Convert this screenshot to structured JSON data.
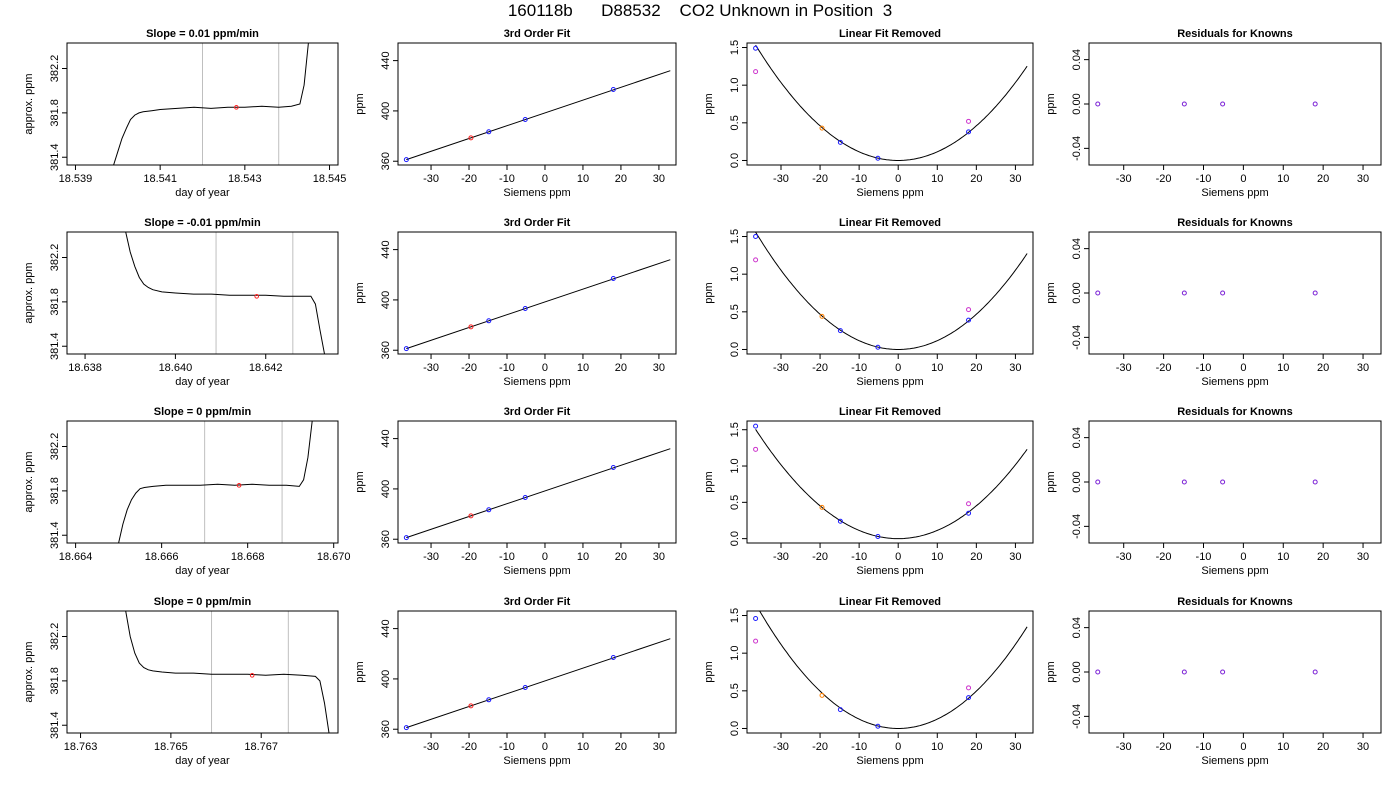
{
  "page_title": "160118b      D88532    CO2 Unknown in Position  3",
  "chart_data": [
    {
      "type": "line",
      "row": 1,
      "panel": "time-series",
      "title": "Slope =  0.01  ppm/min",
      "xlabel": "day of year",
      "ylabel": "approx. ppm",
      "xlim": [
        18.5388,
        18.5452
      ],
      "ylim": [
        381.33,
        382.43
      ],
      "xticks": [
        "18.539",
        "18.541",
        "18.543",
        "18.545"
      ],
      "xtick_values": [
        18.539,
        18.541,
        18.543,
        18.545
      ],
      "yticks": [
        "381.4",
        "381.8",
        "382.2"
      ],
      "ytick_values": [
        381.4,
        381.8,
        382.2
      ],
      "vlines": [
        18.542,
        18.5438
      ],
      "series": [
        {
          "x": [
            18.5399,
            18.54,
            18.5401,
            18.5402,
            18.5403,
            18.5404,
            18.5405,
            18.5406,
            18.5408,
            18.541,
            18.5414,
            18.5418,
            18.5422,
            18.5426,
            18.543,
            18.5434,
            18.5438,
            18.5441,
            18.5443,
            18.5444,
            18.5445
          ],
          "y": [
            381.33,
            381.45,
            381.57,
            381.66,
            381.74,
            381.78,
            381.8,
            381.81,
            381.82,
            381.83,
            381.84,
            381.85,
            381.84,
            381.85,
            381.85,
            381.86,
            381.85,
            381.86,
            381.88,
            382.05,
            382.43
          ]
        }
      ],
      "highlight": {
        "x": 18.5428,
        "y": 381.85
      }
    },
    {
      "type": "scatter",
      "row": 1,
      "panel": "fit",
      "title": "3rd Order Fit",
      "xlabel": "Siemens ppm",
      "ylabel": "ppm",
      "xlim": [
        -38.7,
        34.5
      ],
      "ylim": [
        357,
        454
      ],
      "xticks": [
        "-30",
        "-20",
        "-10",
        "0",
        "10",
        "20",
        "30"
      ],
      "xtick_values": [
        -30,
        -20,
        -10,
        0,
        10,
        20,
        30
      ],
      "yticks": [
        "360",
        "400",
        "440"
      ],
      "ytick_values": [
        360,
        400,
        440
      ],
      "knowns": {
        "x": [
          -36.5,
          -14.8,
          -5.2,
          18.0
        ],
        "y": [
          361.3,
          383.4,
          393.2,
          417.0
        ]
      },
      "unknown": {
        "x": -19.5,
        "y": 378.6
      },
      "fit_line": {
        "x": [
          -36.5,
          33.0
        ],
        "y": [
          361.3,
          432.0
        ]
      }
    },
    {
      "type": "scatter",
      "row": 1,
      "panel": "residual-curve",
      "title": "Linear Fit Removed",
      "xlabel": "Siemens ppm",
      "ylabel": "ppm",
      "xlim": [
        -38.7,
        34.5
      ],
      "ylim": [
        -0.06,
        1.56
      ],
      "xticks": [
        "-30",
        "-20",
        "-10",
        "0",
        "10",
        "20",
        "30"
      ],
      "xtick_values": [
        -30,
        -20,
        -10,
        0,
        10,
        20,
        30
      ],
      "yticks": [
        "0.0",
        "0.5",
        "1.0",
        "1.5"
      ],
      "ytick_values": [
        0,
        0.5,
        1.0,
        1.5
      ],
      "curve_a": 0.00115,
      "curve_b": 0.0,
      "knowns": {
        "x": [
          -36.5,
          -14.8,
          -5.2,
          18.0
        ],
        "y": [
          1.49,
          0.24,
          0.03,
          0.38
        ]
      },
      "knowns_alt": {
        "x": [
          -36.5,
          18.0
        ],
        "y": [
          1.18,
          0.52
        ]
      },
      "unknown": {
        "x": -19.5,
        "y": 0.43
      }
    },
    {
      "type": "scatter",
      "row": 1,
      "panel": "residuals",
      "title": "Residuals for Knowns",
      "xlabel": "Siemens ppm",
      "ylabel": "ppm",
      "xlim": [
        -38.7,
        34.5
      ],
      "ylim": [
        -0.055,
        0.055
      ],
      "xticks": [
        "-30",
        "-20",
        "-10",
        "0",
        "10",
        "20",
        "30"
      ],
      "xtick_values": [
        -30,
        -20,
        -10,
        0,
        10,
        20,
        30
      ],
      "yticks": [
        "-0.04",
        "0.00",
        "0.04"
      ],
      "ytick_values": [
        -0.04,
        0,
        0.04
      ],
      "knowns": {
        "x": [
          -36.5,
          -14.8,
          -5.2,
          18.0
        ],
        "y": [
          0,
          0,
          0,
          0
        ]
      }
    },
    {
      "type": "line",
      "row": 2,
      "panel": "time-series",
      "title": "Slope =  -0.01  ppm/min",
      "xlabel": "day of year",
      "ylabel": "approx. ppm",
      "xlim": [
        18.6376,
        18.6436
      ],
      "ylim": [
        381.33,
        382.43
      ],
      "xticks": [
        "18.638",
        "18.640",
        "18.642"
      ],
      "xtick_values": [
        18.638,
        18.64,
        18.642
      ],
      "yticks": [
        "381.4",
        "381.8",
        "382.2"
      ],
      "ytick_values": [
        381.4,
        381.8,
        382.2
      ],
      "vlines": [
        18.6409,
        18.6426
      ],
      "series": [
        {
          "x": [
            18.6389,
            18.639,
            18.6391,
            18.6392,
            18.6393,
            18.6394,
            18.6395,
            18.6397,
            18.64,
            18.6404,
            18.6408,
            18.6412,
            18.6416,
            18.642,
            18.6424,
            18.6428,
            18.643,
            18.6431,
            18.6432,
            18.6433
          ],
          "y": [
            382.43,
            382.25,
            382.12,
            382.02,
            381.96,
            381.93,
            381.91,
            381.89,
            381.88,
            381.87,
            381.87,
            381.86,
            381.86,
            381.86,
            381.85,
            381.85,
            381.85,
            381.78,
            381.55,
            381.33
          ]
        }
      ],
      "highlight": {
        "x": 18.6418,
        "y": 381.85
      }
    },
    {
      "type": "scatter",
      "row": 2,
      "panel": "fit",
      "title": "3rd Order Fit",
      "xlabel": "Siemens ppm",
      "ylabel": "ppm",
      "xlim": [
        -38.7,
        34.5
      ],
      "ylim": [
        357,
        454
      ],
      "xticks": [
        "-30",
        "-20",
        "-10",
        "0",
        "10",
        "20",
        "30"
      ],
      "xtick_values": [
        -30,
        -20,
        -10,
        0,
        10,
        20,
        30
      ],
      "yticks": [
        "360",
        "400",
        "440"
      ],
      "ytick_values": [
        360,
        400,
        440
      ],
      "knowns": {
        "x": [
          -36.5,
          -14.8,
          -5.2,
          18.0
        ],
        "y": [
          361.3,
          383.4,
          393.2,
          417.0
        ]
      },
      "unknown": {
        "x": -19.5,
        "y": 378.6
      },
      "fit_line": {
        "x": [
          -36.5,
          33.0
        ],
        "y": [
          361.3,
          432.0
        ]
      }
    },
    {
      "type": "scatter",
      "row": 2,
      "panel": "residual-curve",
      "title": "Linear Fit Removed",
      "xlabel": "Siemens ppm",
      "ylabel": "ppm",
      "xlim": [
        -38.7,
        34.5
      ],
      "ylim": [
        -0.06,
        1.56
      ],
      "xticks": [
        "-30",
        "-20",
        "-10",
        "0",
        "10",
        "20",
        "30"
      ],
      "xtick_values": [
        -30,
        -20,
        -10,
        0,
        10,
        20,
        30
      ],
      "yticks": [
        "0.0",
        "0.5",
        "1.0",
        "1.5"
      ],
      "ytick_values": [
        0,
        0.5,
        1.0,
        1.5
      ],
      "curve_a": 0.00117,
      "curve_b": 0.0,
      "knowns": {
        "x": [
          -36.5,
          -14.8,
          -5.2,
          18.0
        ],
        "y": [
          1.5,
          0.25,
          0.03,
          0.39
        ]
      },
      "knowns_alt": {
        "x": [
          -36.5,
          18.0
        ],
        "y": [
          1.19,
          0.53
        ]
      },
      "unknown": {
        "x": -19.5,
        "y": 0.44
      }
    },
    {
      "type": "scatter",
      "row": 2,
      "panel": "residuals",
      "title": "Residuals for Knowns",
      "xlabel": "Siemens ppm",
      "ylabel": "ppm",
      "xlim": [
        -38.7,
        34.5
      ],
      "ylim": [
        -0.055,
        0.055
      ],
      "xticks": [
        "-30",
        "-20",
        "-10",
        "0",
        "10",
        "20",
        "30"
      ],
      "xtick_values": [
        -30,
        -20,
        -10,
        0,
        10,
        20,
        30
      ],
      "yticks": [
        "-0.04",
        "0.00",
        "0.04"
      ],
      "ytick_values": [
        -0.04,
        0,
        0.04
      ],
      "knowns": {
        "x": [
          -36.5,
          -14.8,
          -5.2,
          18.0
        ],
        "y": [
          0,
          0,
          0,
          0
        ]
      }
    },
    {
      "type": "line",
      "row": 3,
      "panel": "time-series",
      "title": "Slope =  0  ppm/min",
      "xlabel": "day of year",
      "ylabel": "approx. ppm",
      "xlim": [
        18.6638,
        18.6701
      ],
      "ylim": [
        381.33,
        382.43
      ],
      "xticks": [
        "18.664",
        "18.666",
        "18.668",
        "18.670"
      ],
      "xtick_values": [
        18.664,
        18.666,
        18.668,
        18.67
      ],
      "yticks": [
        "381.4",
        "381.8",
        "382.2"
      ],
      "ytick_values": [
        381.4,
        381.8,
        382.2
      ],
      "vlines": [
        18.667,
        18.6688
      ],
      "series": [
        {
          "x": [
            18.665,
            18.6651,
            18.6652,
            18.6653,
            18.6654,
            18.6655,
            18.6656,
            18.6658,
            18.6661,
            18.6665,
            18.6669,
            18.6673,
            18.6677,
            18.6681,
            18.6685,
            18.6689,
            18.6692,
            18.6693,
            18.6694,
            18.6695
          ],
          "y": [
            381.33,
            381.5,
            381.63,
            381.72,
            381.78,
            381.82,
            381.83,
            381.84,
            381.85,
            381.85,
            381.85,
            381.86,
            381.85,
            381.86,
            381.85,
            381.85,
            381.84,
            381.9,
            382.1,
            382.43
          ]
        }
      ],
      "highlight": {
        "x": 18.6678,
        "y": 381.85
      }
    },
    {
      "type": "scatter",
      "row": 3,
      "panel": "fit",
      "title": "3rd Order Fit",
      "xlabel": "Siemens ppm",
      "ylabel": "ppm",
      "xlim": [
        -38.7,
        34.5
      ],
      "ylim": [
        357,
        454
      ],
      "xticks": [
        "-30",
        "-20",
        "-10",
        "0",
        "10",
        "20",
        "30"
      ],
      "xtick_values": [
        -30,
        -20,
        -10,
        0,
        10,
        20,
        30
      ],
      "yticks": [
        "360",
        "400",
        "440"
      ],
      "ytick_values": [
        360,
        400,
        440
      ],
      "knowns": {
        "x": [
          -36.5,
          -14.8,
          -5.2,
          18.0
        ],
        "y": [
          361.3,
          383.4,
          393.2,
          417.0
        ]
      },
      "unknown": {
        "x": -19.5,
        "y": 378.6
      },
      "fit_line": {
        "x": [
          -36.5,
          33.0
        ],
        "y": [
          361.3,
          432.0
        ]
      }
    },
    {
      "type": "scatter",
      "row": 3,
      "panel": "residual-curve",
      "title": "Linear Fit Removed",
      "xlabel": "Siemens ppm",
      "ylabel": "ppm",
      "xlim": [
        -38.7,
        34.5
      ],
      "ylim": [
        -0.06,
        1.62
      ],
      "xticks": [
        "-30",
        "-20",
        "-10",
        "0",
        "10",
        "20",
        "30"
      ],
      "xtick_values": [
        -30,
        -20,
        -10,
        0,
        10,
        20,
        30
      ],
      "yticks": [
        "0.0",
        "0.5",
        "1.0",
        "1.5"
      ],
      "ytick_values": [
        0,
        0.5,
        1.0,
        1.5
      ],
      "curve_a": 0.00113,
      "curve_b": 0.0,
      "knowns": {
        "x": [
          -36.5,
          -14.8,
          -5.2,
          18.0
        ],
        "y": [
          1.55,
          0.24,
          0.03,
          0.35
        ]
      },
      "knowns_alt": {
        "x": [
          -36.5,
          18.0
        ],
        "y": [
          1.23,
          0.48
        ]
      },
      "unknown": {
        "x": -19.5,
        "y": 0.43
      }
    },
    {
      "type": "scatter",
      "row": 3,
      "panel": "residuals",
      "title": "Residuals for Knowns",
      "xlabel": "Siemens ppm",
      "ylabel": "ppm",
      "xlim": [
        -38.7,
        34.5
      ],
      "ylim": [
        -0.055,
        0.055
      ],
      "xticks": [
        "-30",
        "-20",
        "-10",
        "0",
        "10",
        "20",
        "30"
      ],
      "xtick_values": [
        -30,
        -20,
        -10,
        0,
        10,
        20,
        30
      ],
      "yticks": [
        "-0.04",
        "0.00",
        "0.04"
      ],
      "ytick_values": [
        -0.04,
        0,
        0.04
      ],
      "knowns": {
        "x": [
          -36.5,
          -14.8,
          -5.2,
          18.0
        ],
        "y": [
          0,
          0,
          0,
          0
        ]
      }
    },
    {
      "type": "line",
      "row": 4,
      "panel": "time-series",
      "title": "Slope =  0  ppm/min",
      "xlabel": "day of year",
      "ylabel": "approx. ppm",
      "xlim": [
        18.7627,
        18.7687
      ],
      "ylim": [
        381.33,
        382.43
      ],
      "xticks": [
        "18.763",
        "18.765",
        "18.767"
      ],
      "xtick_values": [
        18.763,
        18.765,
        18.767
      ],
      "yticks": [
        "381.4",
        "381.8",
        "382.2"
      ],
      "ytick_values": [
        381.4,
        381.8,
        382.2
      ],
      "vlines": [
        18.7659,
        18.7676
      ],
      "series": [
        {
          "x": [
            18.764,
            18.7641,
            18.7642,
            18.7643,
            18.7644,
            18.7645,
            18.7646,
            18.7648,
            18.7651,
            18.7655,
            18.7659,
            18.7663,
            18.7667,
            18.7671,
            18.7675,
            18.7679,
            18.7682,
            18.7683,
            18.7684,
            18.7685
          ],
          "y": [
            382.43,
            382.2,
            382.05,
            381.96,
            381.92,
            381.9,
            381.89,
            381.88,
            381.87,
            381.87,
            381.86,
            381.86,
            381.86,
            381.85,
            381.86,
            381.85,
            381.84,
            381.8,
            381.6,
            381.33
          ]
        }
      ],
      "highlight": {
        "x": 18.7668,
        "y": 381.85
      }
    },
    {
      "type": "scatter",
      "row": 4,
      "panel": "fit",
      "title": "3rd Order Fit",
      "xlabel": "Siemens ppm",
      "ylabel": "ppm",
      "xlim": [
        -38.7,
        34.5
      ],
      "ylim": [
        357,
        454
      ],
      "xticks": [
        "-30",
        "-20",
        "-10",
        "0",
        "10",
        "20",
        "30"
      ],
      "xtick_values": [
        -30,
        -20,
        -10,
        0,
        10,
        20,
        30
      ],
      "yticks": [
        "360",
        "400",
        "440"
      ],
      "ytick_values": [
        360,
        400,
        440
      ],
      "knowns": {
        "x": [
          -36.5,
          -14.8,
          -5.2,
          18.0
        ],
        "y": [
          361.3,
          383.4,
          393.2,
          417.0
        ]
      },
      "unknown": {
        "x": -19.5,
        "y": 378.6
      },
      "fit_line": {
        "x": [
          -36.5,
          33.0
        ],
        "y": [
          361.3,
          432.0
        ]
      }
    },
    {
      "type": "scatter",
      "row": 4,
      "panel": "residual-curve",
      "title": "Linear Fit Removed",
      "xlabel": "Siemens ppm",
      "ylabel": "ppm",
      "xlim": [
        -38.7,
        34.5
      ],
      "ylim": [
        -0.06,
        1.56
      ],
      "xticks": [
        "-30",
        "-20",
        "-10",
        "0",
        "10",
        "20",
        "30"
      ],
      "xtick_values": [
        -30,
        -20,
        -10,
        0,
        10,
        20,
        30
      ],
      "yticks": [
        "0.0",
        "0.5",
        "1.0",
        "1.5"
      ],
      "ytick_values": [
        0,
        0.5,
        1.0,
        1.5
      ],
      "curve_a": 0.00124,
      "curve_b": 0.0,
      "knowns": {
        "x": [
          -36.5,
          -14.8,
          -5.2,
          18.0
        ],
        "y": [
          1.46,
          0.25,
          0.03,
          0.41
        ]
      },
      "knowns_alt": {
        "x": [
          -36.5,
          18.0
        ],
        "y": [
          1.16,
          0.54
        ]
      },
      "unknown": {
        "x": -19.5,
        "y": 0.44
      }
    },
    {
      "type": "scatter",
      "row": 4,
      "panel": "residuals",
      "title": "Residuals for Knowns",
      "xlabel": "Siemens ppm",
      "ylabel": "ppm",
      "xlim": [
        -38.7,
        34.5
      ],
      "ylim": [
        -0.055,
        0.055
      ],
      "xticks": [
        "-30",
        "-20",
        "-10",
        "0",
        "10",
        "20",
        "30"
      ],
      "xtick_values": [
        -30,
        -20,
        -10,
        0,
        10,
        20,
        30
      ],
      "yticks": [
        "-0.04",
        "0.00",
        "0.04"
      ],
      "ytick_values": [
        -0.04,
        0,
        0.04
      ],
      "knowns": {
        "x": [
          -36.5,
          -14.8,
          -5.2,
          18.0
        ],
        "y": [
          0,
          0,
          0,
          0
        ]
      }
    }
  ],
  "colors": {
    "line": "#000000",
    "known_point": "#1a1aff",
    "known_alt_point": "#cc33cc",
    "unknown_point": "#ff2020",
    "unknown_point_alt": "#ff8000",
    "vline": "#bfbfbf",
    "residual_point": "#7a1fd6"
  }
}
